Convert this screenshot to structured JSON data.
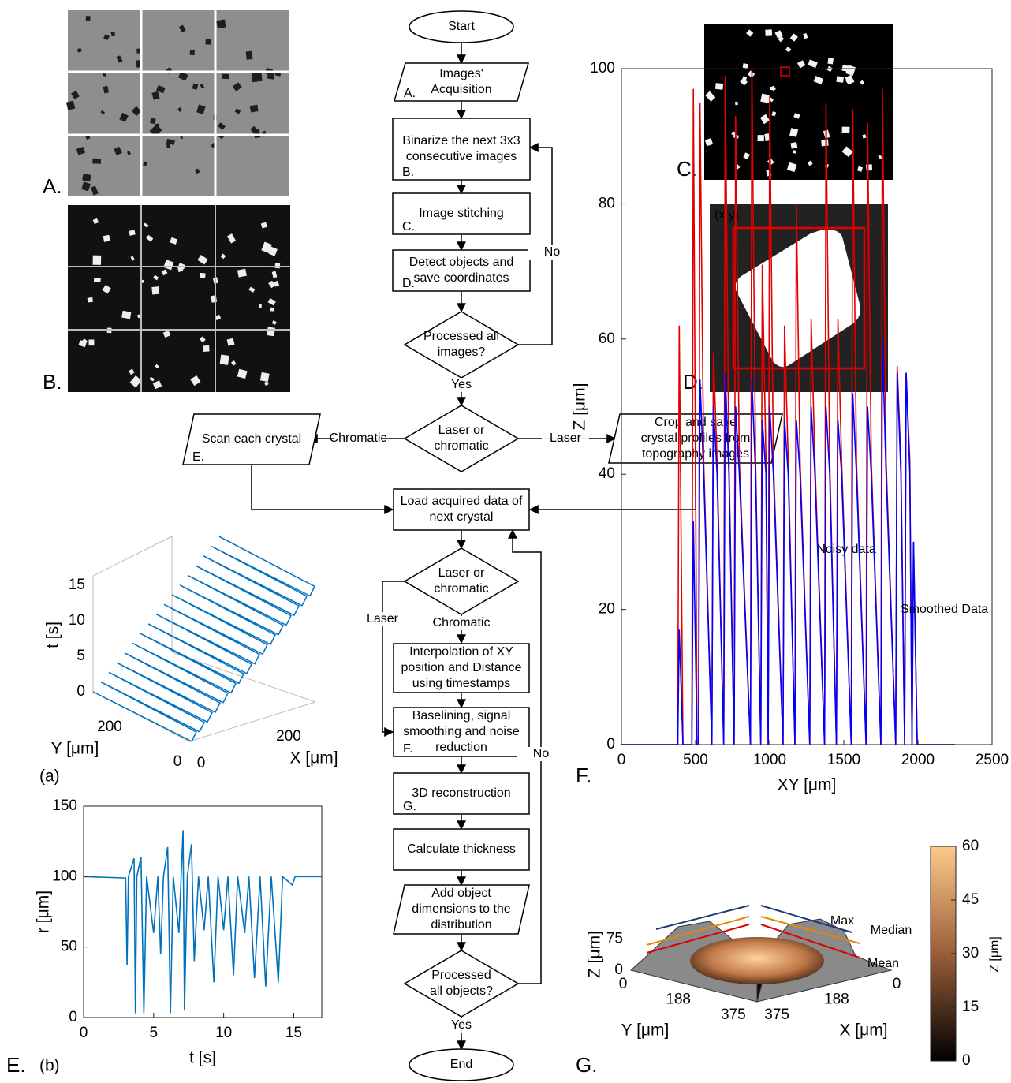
{
  "flowchart": {
    "nodes": [
      {
        "lines": [
          "Start"
        ]
      },
      {
        "lines": [
          "Images'",
          "Acquisition"
        ],
        "tag": {
          "text": "A.",
          "color": "#e00000"
        }
      },
      {
        "lines": [
          "Binarize the next 3x3",
          "consecutive images"
        ],
        "tag": {
          "text": "B.",
          "color": "#1a7a1a"
        }
      },
      {
        "lines": [
          "Image stitching"
        ],
        "tag": {
          "text": "C.",
          "color": "#6a1a8a"
        }
      },
      {
        "lines": [
          "Detect objects and",
          "save coordinates"
        ],
        "tag": {
          "text": "D.",
          "color": "#c86400"
        }
      },
      {
        "lines": [
          "Processed all",
          "images?"
        ]
      },
      {
        "lines": [
          "Laser or",
          "chromatic"
        ]
      },
      {
        "lines": [
          "Scan each crystal"
        ],
        "tag": {
          "text": "E.",
          "color": "#1f3a7a"
        }
      },
      {
        "lines": [
          "Crop and save",
          "crystal profiles from",
          "topography images"
        ]
      },
      {
        "lines": [
          "Load acquired data of",
          "next crystal"
        ]
      },
      {
        "lines": [
          "Laser or",
          "chromatic"
        ]
      },
      {
        "lines": [
          "Interpolation of XY",
          "position and Distance",
          "using timestamps"
        ]
      },
      {
        "lines": [
          "Baselining, signal",
          "smoothing and noise",
          "reduction"
        ],
        "tag": {
          "text": "F.",
          "color": "#d050c0"
        }
      },
      {
        "lines": [
          "3D reconstruction"
        ],
        "tag": {
          "text": "G.",
          "color": "#d4a017"
        }
      },
      {
        "lines": [
          "Calculate thickness"
        ]
      },
      {
        "lines": [
          "Add object",
          "dimensions to the",
          "distribution"
        ]
      },
      {
        "lines": [
          "Processed",
          "all objects?"
        ]
      },
      {
        "lines": [
          "End"
        ]
      }
    ],
    "edge_labels": [
      "No",
      "Yes",
      "Chromatic",
      "Laser",
      "Laser",
      "Chromatic",
      "No",
      "Yes"
    ]
  },
  "panels": {
    "A": {
      "tag": "A.",
      "color": "#e00000"
    },
    "B": {
      "tag": "B.",
      "color": "#1a7a1a"
    },
    "C": {
      "tag": "C.",
      "color": "#6a1a8a"
    },
    "D": {
      "tag": "D.",
      "color": "#c86400",
      "corner_label": "(x,y)"
    },
    "E": {
      "tag": "E.",
      "color": "#1f3a7a",
      "b_sublabel": "(b)",
      "a": {
        "sublabel": "(a)",
        "t_label": "t [s]",
        "y_label": "Y [μm]",
        "x_label": "X [μm]",
        "t_ticks": [
          0,
          5,
          10,
          15
        ],
        "y_ticks": [
          0,
          200
        ],
        "x_ticks": [
          0,
          200
        ]
      }
    },
    "F": {
      "tag": "F.",
      "color": "#d050c0"
    },
    "G": {
      "tag": "G.",
      "color": "#d4a017",
      "z_label": "Z [μm]",
      "y_label": "Y [μm]",
      "x_label": "X [μm]",
      "z_ticks": [
        0,
        75
      ],
      "y_ticks": [
        0,
        188,
        375
      ],
      "x_ticks": [
        0,
        188,
        375
      ],
      "annotations": [
        "Max",
        "Median",
        "Mean"
      ],
      "colorbar": {
        "label": "Z [μm]",
        "ticks": [
          0,
          15,
          30,
          45,
          60
        ]
      }
    }
  },
  "chart_data": [
    {
      "type": "line",
      "xlabel": "t [s]",
      "ylabel": "r [μm]",
      "xlim": [
        0,
        17
      ],
      "ylim": [
        0,
        150
      ],
      "xticks": [
        0,
        5,
        10,
        15
      ],
      "yticks": [
        0,
        50,
        100,
        150
      ],
      "x": [
        0,
        3.0,
        3.1,
        3.2,
        3.6,
        3.7,
        3.8,
        4.1,
        4.3,
        4.5,
        5.0,
        5.3,
        5.5,
        5.7,
        6.0,
        6.2,
        6.4,
        6.8,
        7.1,
        7.2,
        7.4,
        7.7,
        7.9,
        8.2,
        8.6,
        8.9,
        9.3,
        9.6,
        10.0,
        10.3,
        10.7,
        11.0,
        11.5,
        11.8,
        12.2,
        12.6,
        13.0,
        13.4,
        13.9,
        14.2,
        14.9,
        15.1,
        17
      ],
      "series": [
        {
          "color": "#0072bd",
          "values": [
            100,
            99,
            37,
            100,
            113,
            3,
            100,
            114,
            3,
            100,
            60,
            100,
            45,
            100,
            121,
            3,
            100,
            60,
            133,
            5,
            100,
            123,
            40,
            100,
            62,
            100,
            25,
            100,
            62,
            100,
            30,
            100,
            60,
            100,
            28,
            100,
            22,
            100,
            25,
            100,
            94,
            100,
            100
          ]
        }
      ]
    },
    {
      "type": "line",
      "xlabel": "XY [μm]",
      "ylabel": "Z [μm]",
      "xlim": [
        0,
        2500
      ],
      "ylim": [
        0,
        100
      ],
      "xticks": [
        0,
        500,
        1000,
        1500,
        2000,
        2500
      ],
      "yticks": [
        0,
        20,
        40,
        60,
        80,
        100
      ],
      "x": [
        0,
        380,
        390,
        415,
        475,
        485,
        510,
        520,
        530,
        555,
        610,
        620,
        645,
        690,
        700,
        725,
        760,
        770,
        795,
        870,
        880,
        905,
        940,
        950,
        975,
        990,
        1000,
        1025,
        1090,
        1100,
        1125,
        1170,
        1180,
        1205,
        1270,
        1280,
        1305,
        1370,
        1380,
        1405,
        1450,
        1460,
        1485,
        1550,
        1560,
        1585,
        1650,
        1660,
        1685,
        1750,
        1760,
        1785,
        1850,
        1860,
        1885,
        1910,
        1920,
        1945,
        1960,
        1970,
        1995,
        2250
      ],
      "series": [
        {
          "name": "Noisy data",
          "color": "#e00000",
          "values": [
            0,
            0,
            62,
            0,
            0,
            97,
            0,
            0,
            95,
            42,
            0,
            58,
            42,
            0,
            99,
            42,
            0,
            93,
            42,
            0,
            100,
            42,
            0,
            71,
            42,
            0,
            96,
            42,
            0,
            62,
            42,
            0,
            80,
            42,
            0,
            63,
            42,
            0,
            95,
            42,
            0,
            63,
            42,
            0,
            94,
            42,
            0,
            92,
            42,
            0,
            97,
            42,
            0,
            56,
            42,
            0,
            55,
            42,
            0,
            30,
            0,
            0
          ]
        },
        {
          "name": "Smoothed Data",
          "color": "#0000ff",
          "values": [
            0,
            0,
            17,
            0,
            0,
            33,
            0,
            0,
            54,
            40,
            0,
            50,
            40,
            0,
            55,
            40,
            0,
            50,
            40,
            0,
            54,
            40,
            0,
            48,
            40,
            0,
            50,
            40,
            0,
            48,
            40,
            0,
            48,
            40,
            0,
            50,
            40,
            0,
            50,
            40,
            0,
            48,
            40,
            0,
            52,
            40,
            0,
            50,
            40,
            0,
            60,
            40,
            0,
            55,
            40,
            0,
            55,
            40,
            0,
            30,
            0,
            0
          ]
        }
      ]
    }
  ]
}
